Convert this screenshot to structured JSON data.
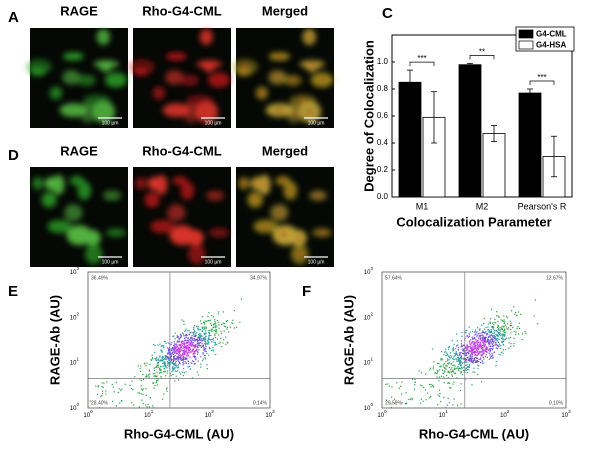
{
  "panel_labels": [
    "A",
    "C",
    "D",
    "E",
    "F"
  ],
  "micrographs": {
    "columns": [
      "RAGE",
      "Rho-G4-CML",
      "Merged"
    ],
    "scale_bar": "100 µm"
  },
  "chart_data": {
    "type": "bar",
    "categories": [
      "M1",
      "M2",
      "Pearson's R"
    ],
    "series": [
      {
        "name": "G4-CML",
        "color": "#000000",
        "values": [
          0.85,
          0.98,
          0.77
        ],
        "errors": [
          0.09,
          0.01,
          0.03
        ]
      },
      {
        "name": "G4-HSA",
        "color": "#ffffff",
        "values": [
          0.59,
          0.47,
          0.3
        ],
        "errors": [
          0.19,
          0.06,
          0.15
        ]
      }
    ],
    "annotations": [
      "***",
      "**",
      "***"
    ],
    "ylim": [
      0,
      1.2
    ],
    "yticks": [
      {
        "value": 0,
        "label": "0.0"
      },
      {
        "value": 0.2,
        "label": "0.2"
      },
      {
        "value": 0.4,
        "label": "0.4"
      },
      {
        "value": 0.6,
        "label": "0.6"
      },
      {
        "value": 0.8,
        "label": "0.8"
      },
      {
        "value": 1.0,
        "label": "1.0"
      }
    ],
    "y_label": "Degree of Colocalization",
    "x_label": "Colocalization Parameter",
    "legend": "upper right"
  },
  "flow": {
    "log_ticks": [
      {
        "base": "10",
        "exp": "0"
      },
      {
        "base": "10",
        "exp": "1"
      },
      {
        "base": "10",
        "exp": "2"
      },
      {
        "base": "10",
        "exp": "3"
      }
    ],
    "plots": [
      {
        "x_label": "Rho-G4-CML (AU)",
        "y_label": "RAGE-Ab (AU)",
        "quadrants": [
          "36.49%",
          "34.97%",
          "28.40%",
          "0.14%"
        ]
      },
      {
        "x_label": "Rho-G4-CML (AU)",
        "y_label": "RAGE-Ab (AU)",
        "quadrants": [
          "57.64%",
          "12.67%",
          "29.59%",
          "0.10%"
        ]
      }
    ]
  }
}
